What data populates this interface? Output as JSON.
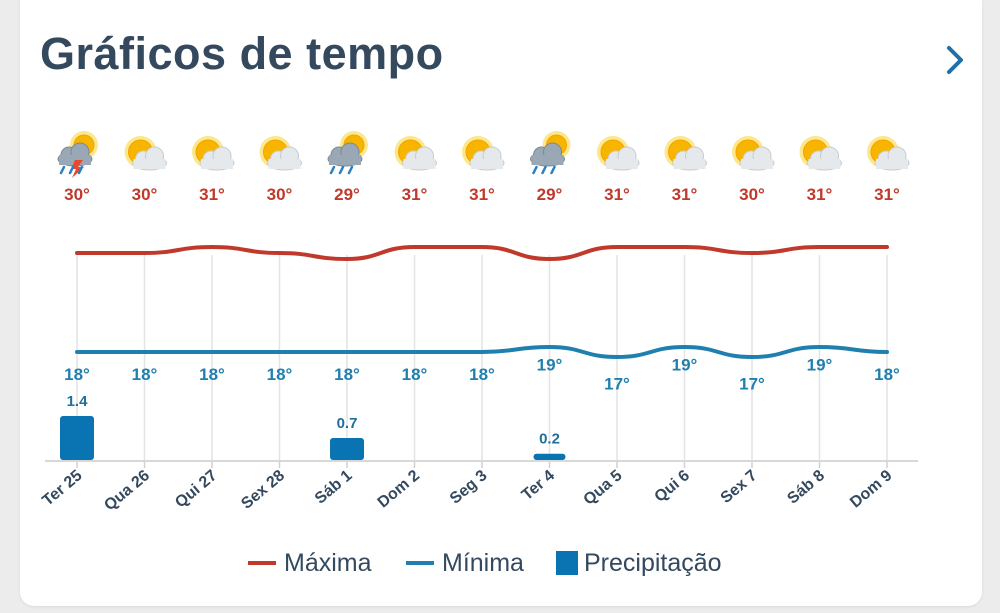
{
  "header": {
    "title": "Gráficos de tempo"
  },
  "colors": {
    "max": "#c0392b",
    "min": "#1f7fae",
    "precip": "#0a73b1",
    "text": "#34495e",
    "grid": "#e4e4e4"
  },
  "chart_data": {
    "type": "line",
    "categories": [
      "Ter 25",
      "Qua 26",
      "Qui 27",
      "Sex 28",
      "Sáb 1",
      "Dom 2",
      "Seg 3",
      "Ter 4",
      "Qua 5",
      "Qui 6",
      "Sex 7",
      "Sáb 8",
      "Dom 9"
    ],
    "series": [
      {
        "name": "Máxima",
        "unit": "°",
        "values": [
          30,
          30,
          31,
          30,
          29,
          31,
          31,
          29,
          31,
          31,
          30,
          31,
          31
        ]
      },
      {
        "name": "Mínima",
        "unit": "°",
        "values": [
          18,
          18,
          18,
          18,
          18,
          18,
          18,
          19,
          17,
          19,
          17,
          19,
          18
        ]
      }
    ],
    "precipitation": {
      "name": "Precipitação",
      "values": [
        1.4,
        null,
        null,
        null,
        0.7,
        null,
        null,
        0.2,
        null,
        null,
        null,
        null,
        null
      ]
    },
    "icons": [
      "thunderstorm-sun-icon",
      "partly-cloudy-icon",
      "partly-cloudy-icon",
      "partly-cloudy-icon",
      "rain-sun-icon",
      "partly-cloudy-icon",
      "partly-cloudy-icon",
      "rain-sun-icon",
      "partly-cloudy-icon",
      "partly-cloudy-icon",
      "partly-cloudy-icon",
      "partly-cloudy-icon",
      "partly-cloudy-icon"
    ],
    "grid": true,
    "legend_position": "bottom"
  },
  "legend": {
    "max_label": "Máxima",
    "min_label": "Mínima",
    "precip_label": "Precipitação"
  }
}
